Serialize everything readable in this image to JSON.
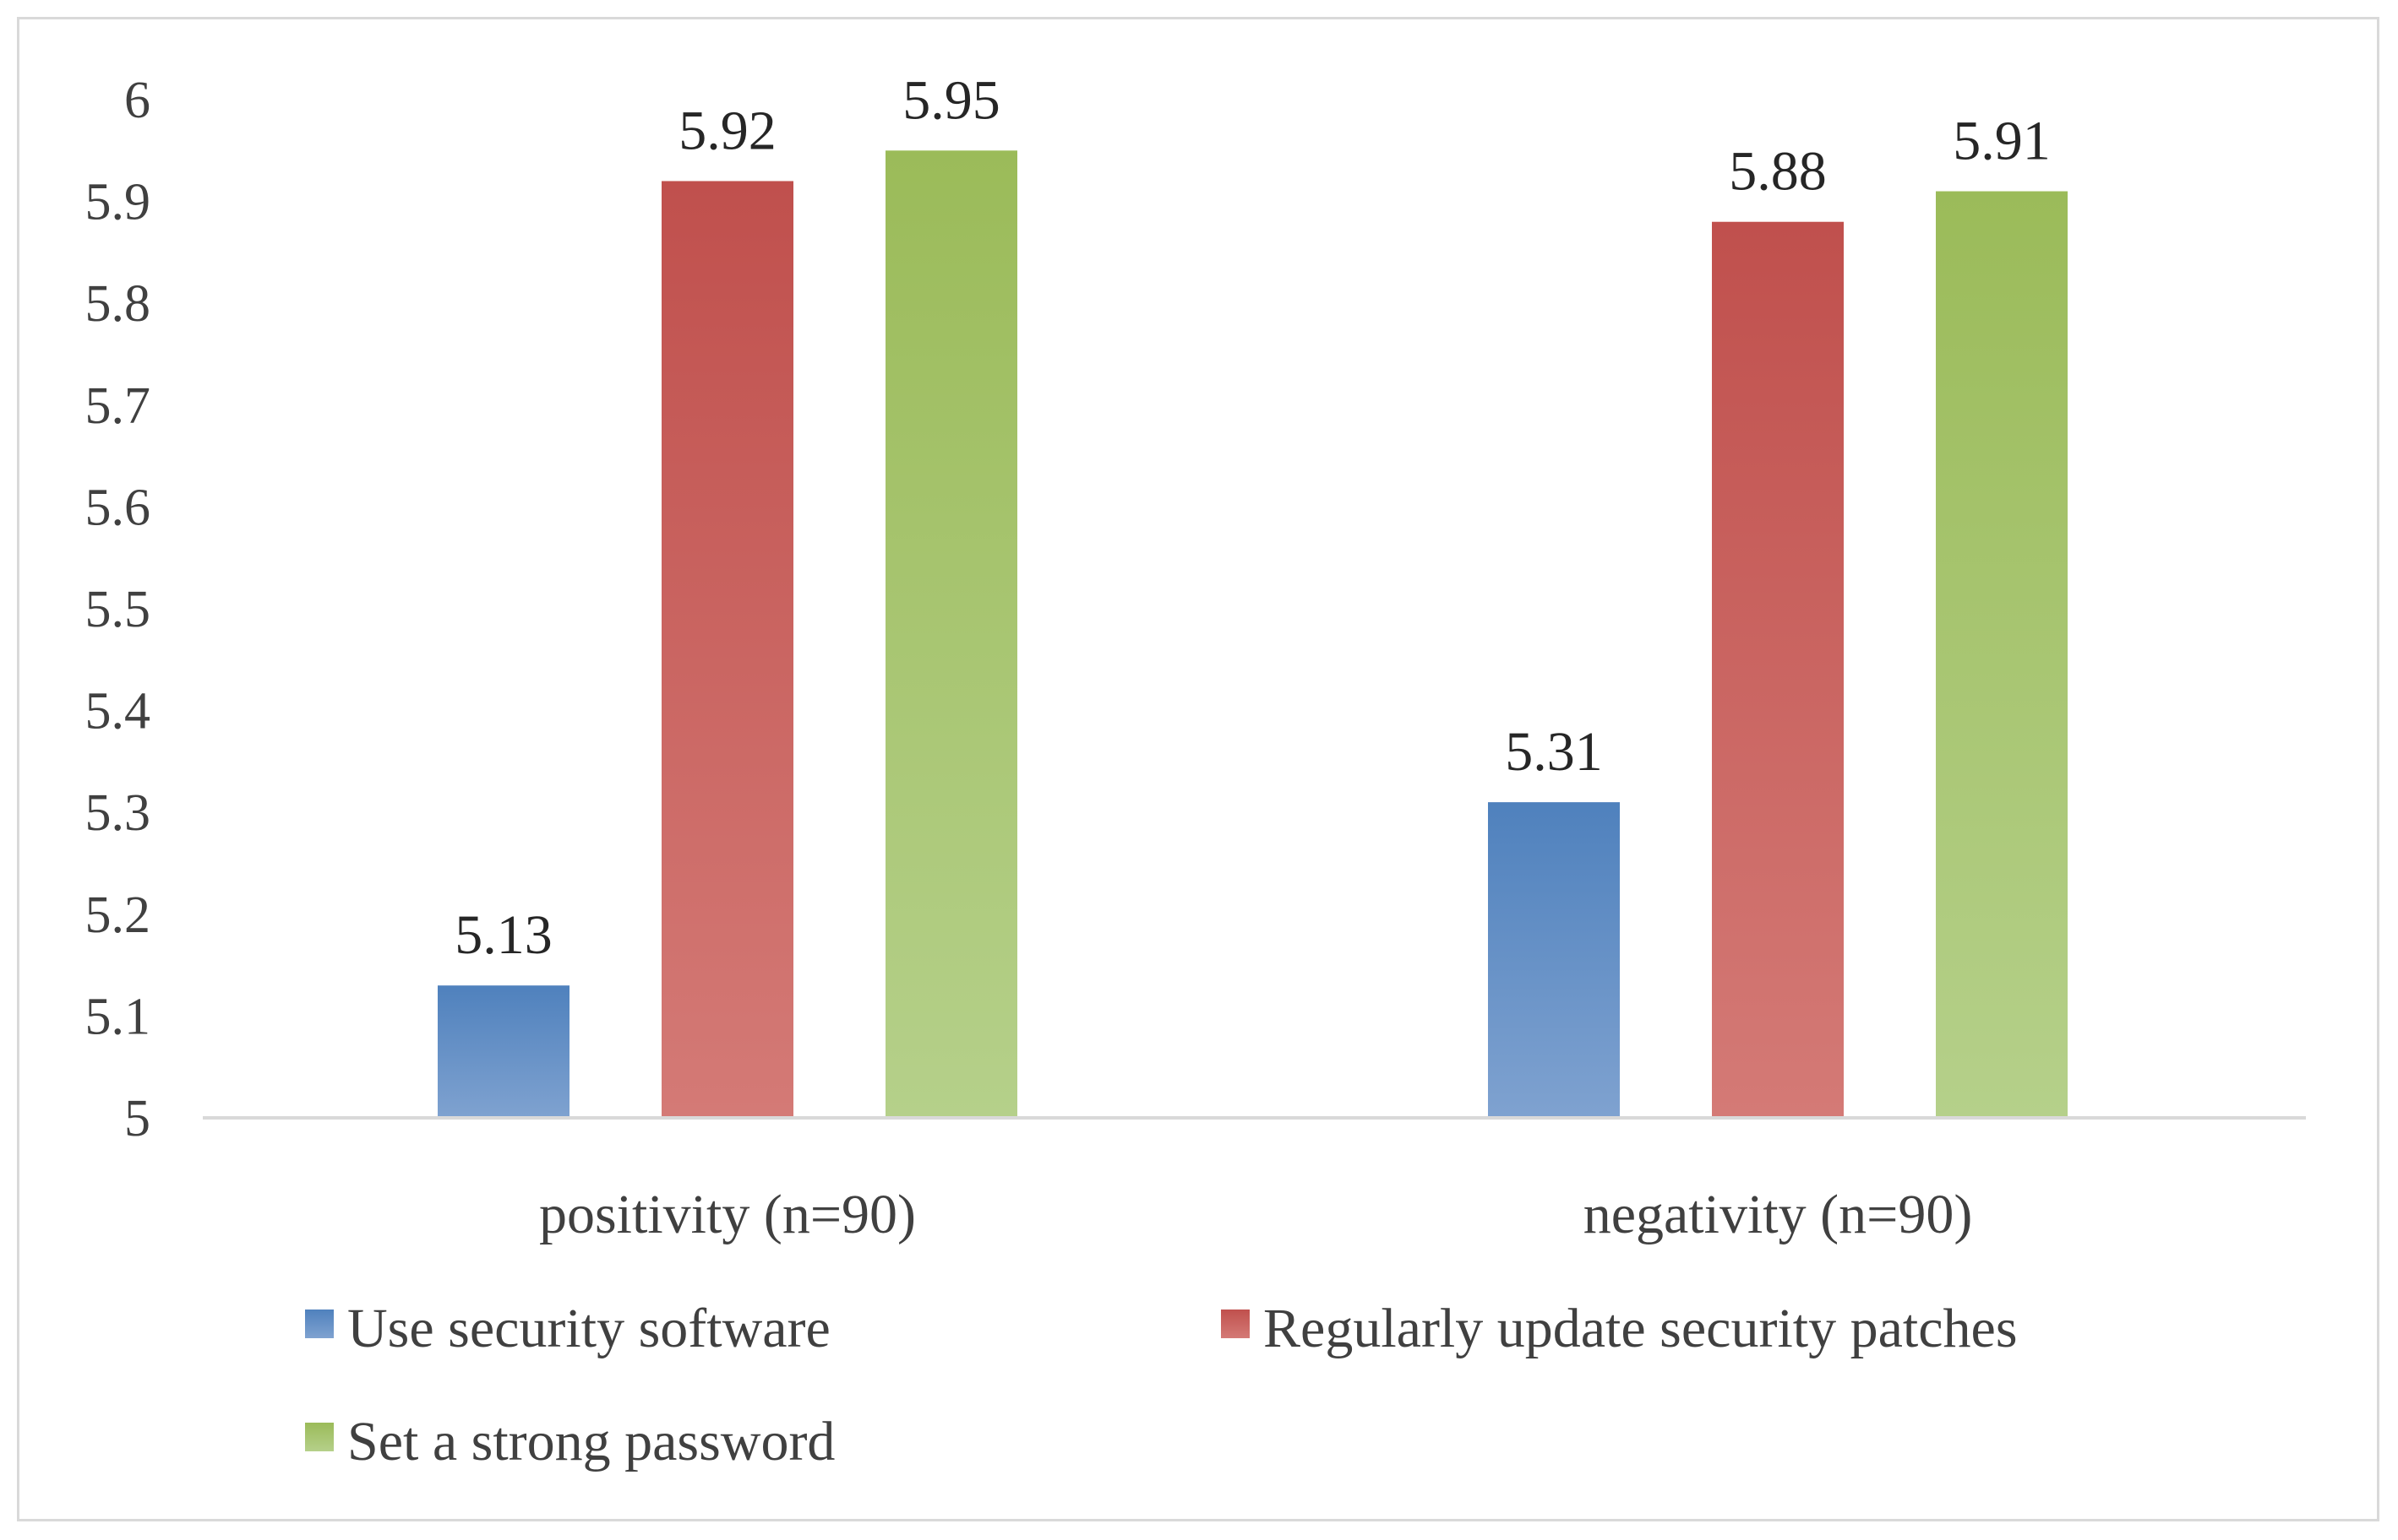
{
  "chart_data": {
    "type": "bar",
    "title": "",
    "xlabel": "",
    "ylabel": "",
    "ylim": [
      5,
      6
    ],
    "yticks": [
      "5",
      "5.1",
      "5.2",
      "5.3",
      "5.4",
      "5.5",
      "5.6",
      "5.7",
      "5.8",
      "5.9",
      "6"
    ],
    "categories": [
      "positivity (n=90)",
      "negativity (n=90)"
    ],
    "series": [
      {
        "name": "Use security software",
        "values": [
          5.13,
          5.31
        ],
        "labels": [
          "5.13",
          "5.31"
        ],
        "color": "#4f81bd",
        "color_light": "#7fa2d0"
      },
      {
        "name": "Regularly update security patches",
        "values": [
          5.92,
          5.88
        ],
        "labels": [
          "5.92",
          "5.88"
        ],
        "color": "#c0504d",
        "color_light": "#d47a76"
      },
      {
        "name": "Set a strong password",
        "values": [
          5.95,
          5.91
        ],
        "labels": [
          "5.95",
          "5.91"
        ],
        "color": "#9bbb59",
        "color_light": "#b5d08a"
      }
    ],
    "grid": false,
    "legend": "bottom"
  }
}
